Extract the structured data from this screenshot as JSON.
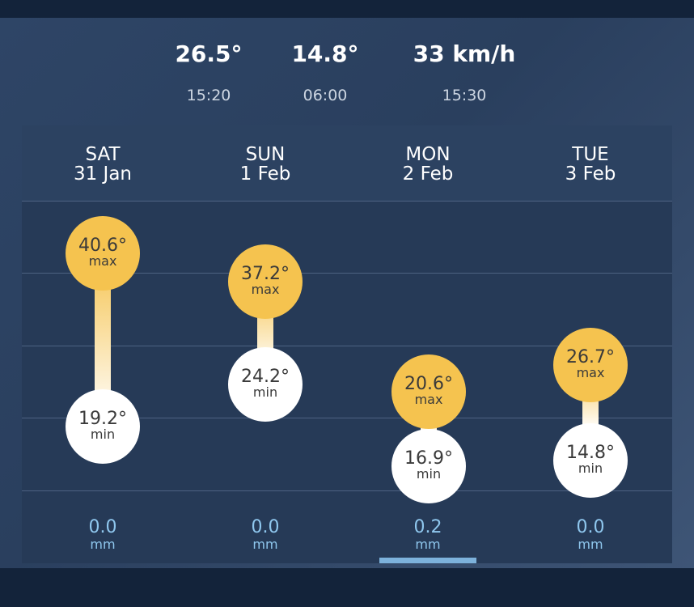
{
  "summary": [
    {
      "value": "26.5°",
      "time": "15:20"
    },
    {
      "value": "14.8°",
      "time": "06:00"
    },
    {
      "value": "33 km/h",
      "time": "15:30"
    }
  ],
  "forecast": {
    "selected_index": 2,
    "days": [
      {
        "weekday": "SAT",
        "date": "31 Jan",
        "max": "40.6°",
        "max_label": "max",
        "min": "19.2°",
        "min_label": "min",
        "rain": "0.0",
        "rain_unit": "mm"
      },
      {
        "weekday": "SUN",
        "date": "1 Feb",
        "max": "37.2°",
        "max_label": "max",
        "min": "24.2°",
        "min_label": "min",
        "rain": "0.0",
        "rain_unit": "mm"
      },
      {
        "weekday": "MON",
        "date": "2 Feb",
        "max": "20.6°",
        "max_label": "max",
        "min": "16.9°",
        "min_label": "min",
        "rain": "0.2",
        "rain_unit": "mm"
      },
      {
        "weekday": "TUE",
        "date": "3 Feb",
        "max": "26.7°",
        "max_label": "max",
        "min": "14.8°",
        "min_label": "min",
        "rain": "0.0",
        "rain_unit": "mm"
      }
    ]
  },
  "colors": {
    "max_circle": "#f5c34f",
    "min_circle": "#ffffff",
    "rain_text": "#8fc7ee",
    "selected_indicator": "#7db2dc"
  }
}
